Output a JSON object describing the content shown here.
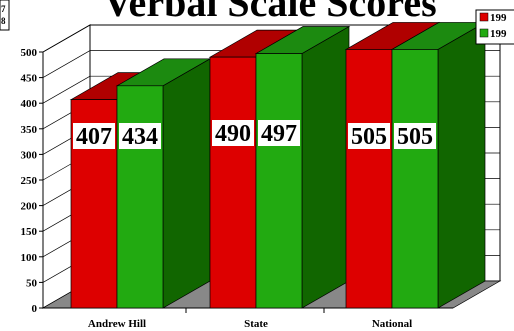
{
  "chart_data": {
    "type": "bar",
    "title": "Verbal Scale Scores",
    "categories": [
      "Andrew  Hill",
      "State",
      "National"
    ],
    "series": [
      {
        "name": "199",
        "color": "#dd0000",
        "top_color": "#b00000",
        "side_color": "#990000",
        "values": [
          407,
          490,
          505
        ]
      },
      {
        "name": "199",
        "color": "#22aa11",
        "top_color": "#1c8a10",
        "side_color": "#116600",
        "values": [
          434,
          497,
          505
        ]
      }
    ],
    "ylim": [
      0,
      500
    ],
    "yticks": [
      0,
      50,
      100,
      150,
      200,
      250,
      300,
      350,
      400,
      450,
      500
    ],
    "data_labels": [
      "407",
      "434",
      "490",
      "497",
      "505",
      "505"
    ],
    "left_edge_text": [
      "7",
      "8"
    ],
    "grid": true,
    "legend_position": "top-right",
    "xlabel": "",
    "ylabel": ""
  }
}
